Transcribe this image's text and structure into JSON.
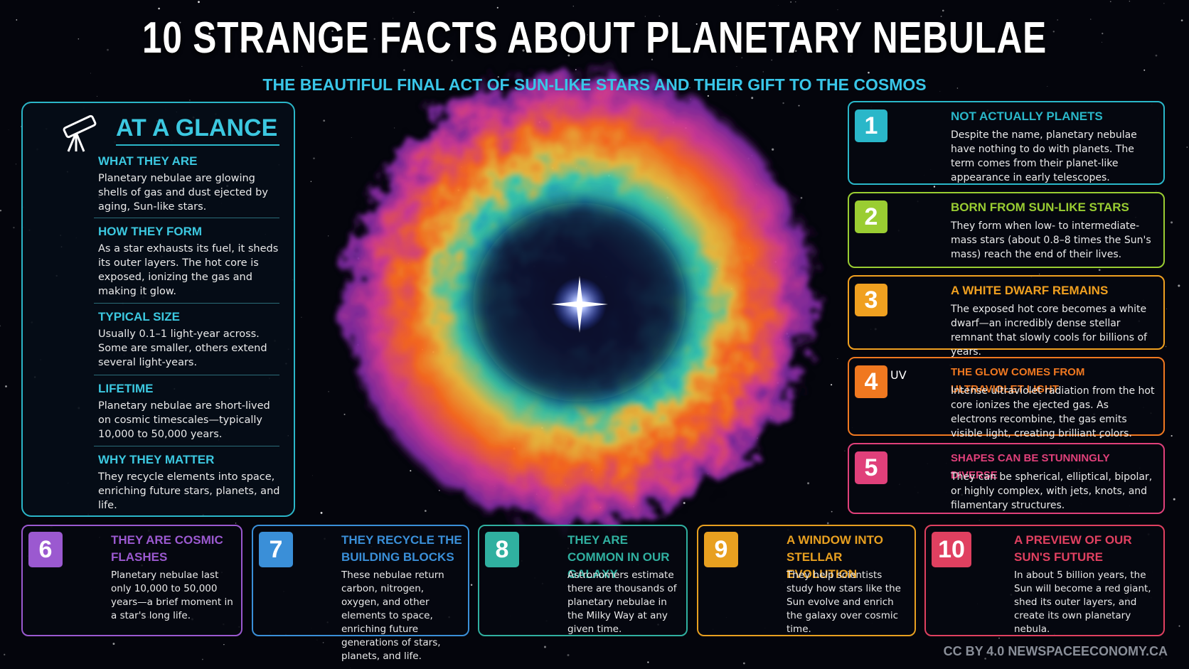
{
  "title": "10 STRANGE FACTS ABOUT PLANETARY NEBULAE",
  "subtitle": "THE BEAUTIFUL FINAL ACT OF SUN-LIKE STARS AND THEIR GIFT TO THE COSMOS",
  "glance": {
    "title": "AT A GLANCE",
    "items": [
      {
        "title": "WHAT THEY ARE",
        "text": "Planetary nebulae are glowing shells of gas and dust ejected by aging, Sun-like stars."
      },
      {
        "title": "HOW THEY FORM",
        "text": "As a star exhausts its fuel, it sheds its outer layers. The hot core is exposed, ionizing the gas and making it glow."
      },
      {
        "title": "TYPICAL SIZE",
        "text": "Usually 0.1–1 light-year across. Some are smaller, others extend several light-years."
      },
      {
        "title": "LIFETIME",
        "text": "Planetary nebulae are short-lived on cosmic timescales—typically 10,000 to 50,000 years."
      },
      {
        "title": "WHY THEY MATTER",
        "text": "They recycle elements into space, enriching future stars, planets, and life."
      }
    ]
  },
  "facts": [
    {
      "number": "1",
      "title": "NOT ACTUALLY PLANETS",
      "text": "Despite the name, planetary nebulae have nothing to do with planets. The term comes from their planet-like appearance in early telescopes."
    },
    {
      "number": "2",
      "title": "BORN FROM SUN-LIKE STARS",
      "text": "They form when low- to intermediate-mass stars (about 0.8–8 times the Sun's mass) reach the end of their lives."
    },
    {
      "number": "3",
      "title": "A WHITE DWARF REMAINS",
      "text": "The exposed hot core becomes a white dwarf—an incredibly dense stellar remnant that slowly cools for billions of years."
    },
    {
      "number": "4",
      "title": "THE GLOW COMES FROM ULTRAVIOLET LIGHT",
      "text": "Intense ultraviolet radiation from the hot core ionizes the ejected gas. As electrons recombine, the gas emits visible light, creating brilliant colors.",
      "icon_label": "UV"
    },
    {
      "number": "5",
      "title": "SHAPES CAN BE STUNNINGLY DIVERSE",
      "text": "They can be spherical, elliptical, bipolar, or highly complex, with jets, knots, and filamentary structures."
    },
    {
      "number": "6",
      "title": "THEY ARE COSMIC FLASHES",
      "text": "Planetary nebulae last only 10,000 to 50,000 years—a brief moment in a star's long life."
    },
    {
      "number": "7",
      "title": "THEY RECYCLE THE BUILDING BLOCKS",
      "text": "These nebulae return carbon, nitrogen, oxygen, and other elements to space, enriching future generations of stars, planets, and life."
    },
    {
      "number": "8",
      "title": "THEY ARE COMMON IN OUR GALAXY",
      "text": "Astronomers estimate there are thousands of planetary nebulae in the Milky Way at any given time."
    },
    {
      "number": "9",
      "title": "A WINDOW INTO STELLAR EVOLUTION",
      "text": "They help scientists study how stars like the Sun evolve and enrich the galaxy over cosmic time."
    },
    {
      "number": "10",
      "title": "A PREVIEW OF OUR SUN'S FUTURE",
      "text": "In about 5 billion years, the Sun will become a red giant, shed its outer layers, and create its own planetary nebula."
    }
  ],
  "credit": "CC BY 4.0 NEWSPACEECONOMY.CA"
}
